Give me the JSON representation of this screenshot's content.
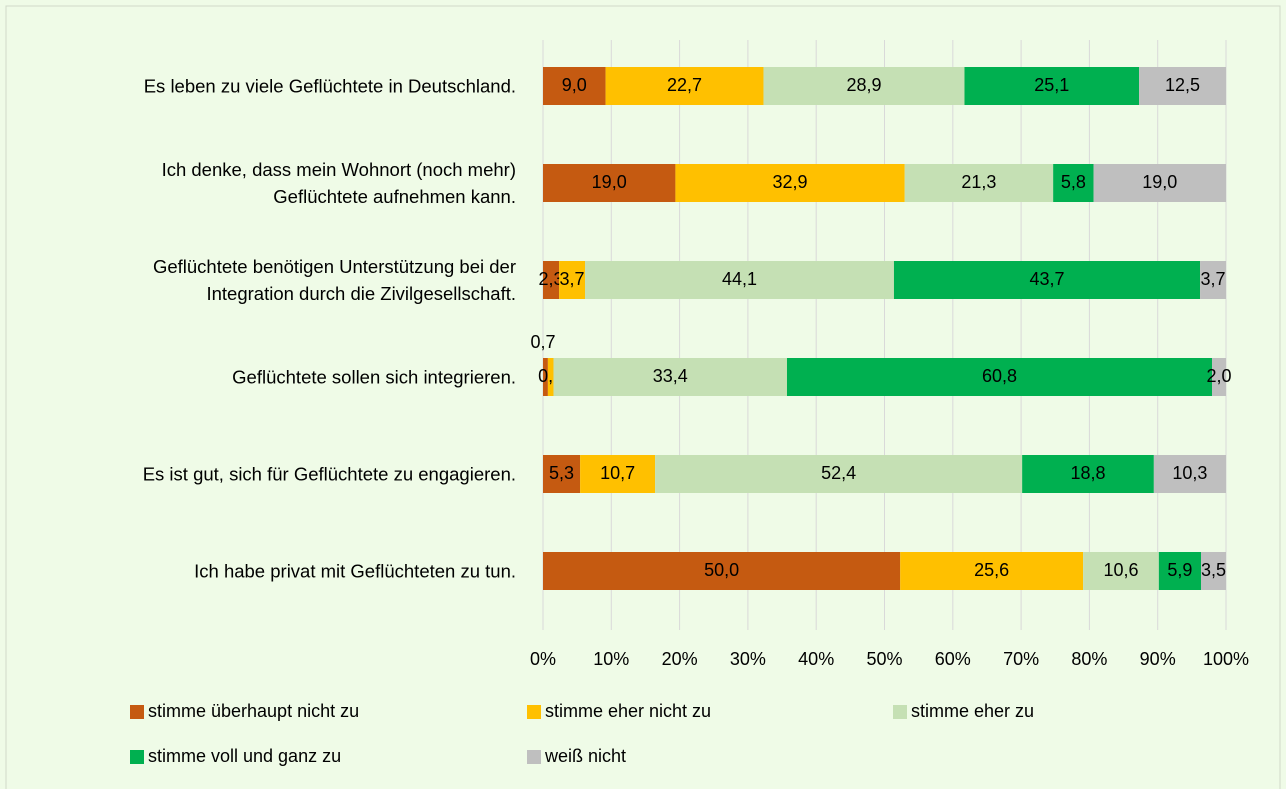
{
  "chart_data": {
    "type": "bar",
    "orientation": "horizontal",
    "stacked": "percent",
    "categories": [
      "Es leben zu viele Geflüchtete in Deutschland.",
      "Ich denke, dass mein Wohnort (noch mehr)\nGeflüchtete aufnehmen kann.",
      "Geflüchtete benötigen Unterstützung bei der\nIntegration durch die Zivilgesellschaft.",
      "Geflüchtete sollen sich integrieren.",
      "Es ist gut, sich für Geflüchtete zu engagieren.",
      "Ich habe privat mit Geflüchteten zu tun."
    ],
    "series": [
      {
        "name": "stimme überhaupt nicht zu",
        "color": "#c55a11",
        "values": [
          9.0,
          19.0,
          2.3,
          0.7,
          5.3,
          50.0
        ],
        "value_labels": [
          "9,0",
          "19,0",
          "2,3",
          "0,7",
          "5,3",
          "50,0"
        ]
      },
      {
        "name": "stimme eher nicht zu",
        "color": "#ffc000",
        "values": [
          22.7,
          32.9,
          3.7,
          0.8,
          10.7,
          25.6
        ],
        "value_labels": [
          "22,7",
          "32,9",
          "3,7",
          "0,8",
          "10,7",
          "25,6"
        ]
      },
      {
        "name": "stimme eher zu",
        "color": "#c5e0b4",
        "values": [
          28.9,
          21.3,
          44.1,
          33.4,
          52.4,
          10.6
        ],
        "value_labels": [
          "28,9",
          "21,3",
          "44,1",
          "33,4",
          "52,4",
          "10,6"
        ]
      },
      {
        "name": "stimme voll und ganz zu",
        "color": "#00b050",
        "values": [
          25.1,
          5.8,
          43.7,
          60.8,
          18.8,
          5.9
        ],
        "value_labels": [
          "25,1",
          "5,8",
          "43,7",
          "60,8",
          "18,8",
          "5,9"
        ]
      },
      {
        "name": "weiß nicht",
        "color": "#bfbfbf",
        "values": [
          12.5,
          19.0,
          3.7,
          2.0,
          10.3,
          3.5
        ],
        "value_labels": [
          "12,5",
          "19,0",
          "3,7",
          "2,0",
          "10,3",
          "3,5"
        ]
      }
    ],
    "xlim": [
      0,
      100
    ],
    "xticks": [
      {
        "value": 0,
        "label": "0%"
      },
      {
        "value": 10,
        "label": "10%"
      },
      {
        "value": 20,
        "label": "20%"
      },
      {
        "value": 30,
        "label": "30%"
      },
      {
        "value": 40,
        "label": "40%"
      },
      {
        "value": 50,
        "label": "50%"
      },
      {
        "value": 60,
        "label": "60%"
      },
      {
        "value": 70,
        "label": "70%"
      },
      {
        "value": 80,
        "label": "80%"
      },
      {
        "value": 90,
        "label": "90%"
      },
      {
        "value": 100,
        "label": "100%"
      }
    ],
    "grid": true,
    "legend": "bottom"
  }
}
